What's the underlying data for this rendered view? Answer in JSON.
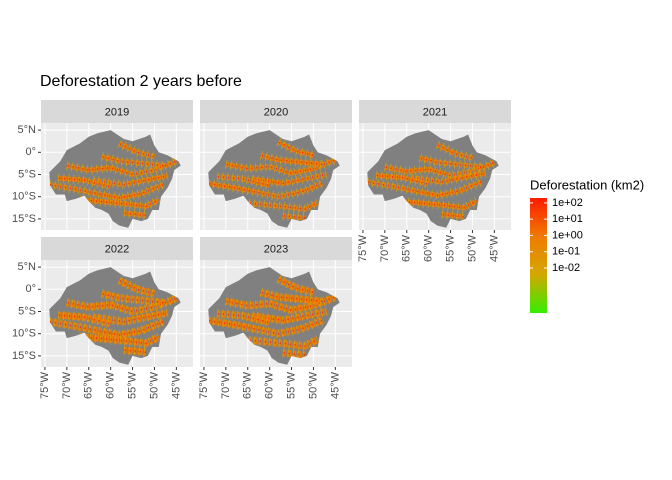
{
  "chart_data": {
    "type": "map",
    "title": "Deforestation 2 years before",
    "facets": [
      "2019",
      "2020",
      "2021",
      "2022",
      "2023"
    ],
    "xlim": [
      -75.9,
      -41.2
    ],
    "ylim": [
      -17.5,
      6.6
    ],
    "xticks": [
      {
        "value": -75,
        "label": "75°W"
      },
      {
        "value": -70,
        "label": "70°W"
      },
      {
        "value": -65,
        "label": "65°W"
      },
      {
        "value": -60,
        "label": "60°W"
      },
      {
        "value": -55,
        "label": "55°W"
      },
      {
        "value": -50,
        "label": "50°W"
      },
      {
        "value": -45,
        "label": "45°W"
      }
    ],
    "yticks": [
      {
        "value": 5,
        "label": "5°N"
      },
      {
        "value": 0,
        "label": "0°"
      },
      {
        "value": -5,
        "label": "5°S"
      },
      {
        "value": -10,
        "label": "10°S"
      },
      {
        "value": -15,
        "label": "15°S"
      }
    ],
    "land_color": "#808080",
    "legend": {
      "title": "Deforestation (km2)",
      "log": true,
      "lim": [
        1.7e-05,
        200
      ],
      "colors": [
        "#33ee00",
        "#d4a800",
        "#f07a00",
        "#ff1a00"
      ],
      "ticks": [
        {
          "value": 100,
          "label": "1e+02"
        },
        {
          "value": 10,
          "label": "1e+01"
        },
        {
          "value": 1,
          "label": "1e+00"
        },
        {
          "value": 0.1,
          "label": "1e-01"
        },
        {
          "value": 0.01,
          "label": "1e-02"
        }
      ]
    }
  }
}
